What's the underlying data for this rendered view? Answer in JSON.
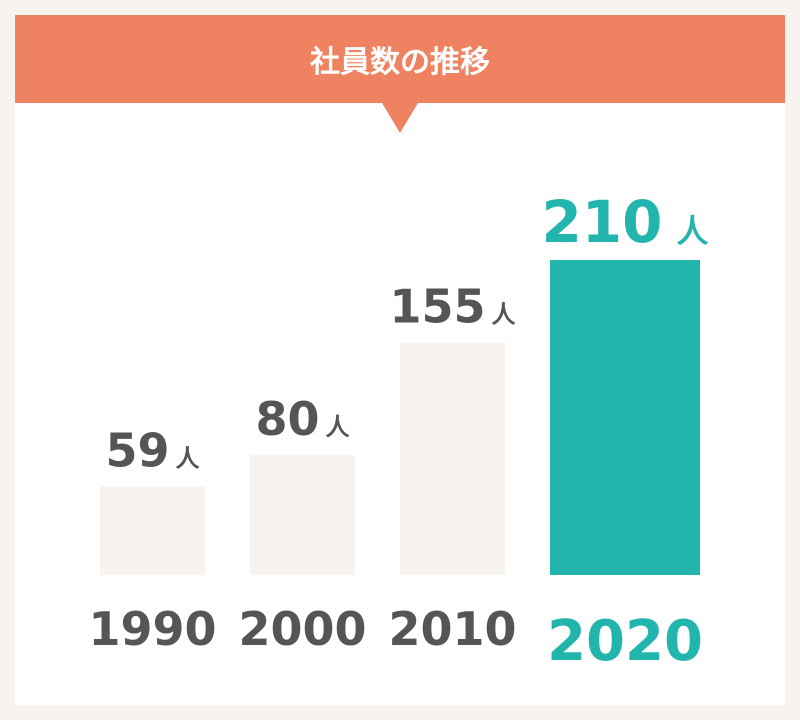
{
  "chart_data": {
    "type": "bar",
    "title": "社員数の推移",
    "categories": [
      "1990",
      "2000",
      "2010",
      "2020"
    ],
    "values": [
      59,
      80,
      155,
      210
    ],
    "unit": "人",
    "colors": [
      "#f7f3ee",
      "#f7f3ee",
      "#f7f3ee",
      "#22b5ad"
    ],
    "label_colors": [
      "#555555",
      "#555555",
      "#555555",
      "#22b5ad"
    ]
  }
}
